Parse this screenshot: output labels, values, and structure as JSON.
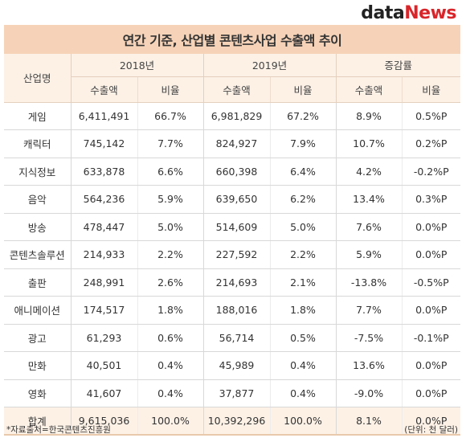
{
  "logo": {
    "part1": "data",
    "part2": "News"
  },
  "title": "연간 기준, 산업별 콘텐츠사업 수출액 추이",
  "header": {
    "industry": "산업명",
    "groups": [
      "2018년",
      "2019년",
      "증감률"
    ],
    "sub": [
      "수출액",
      "비율",
      "수출액",
      "비율",
      "수출액",
      "비율"
    ]
  },
  "rows": [
    {
      "name": "게임",
      "v2018": "6,411,491",
      "r2018": "66.7%",
      "v2019": "6,981,829",
      "r2019": "67.2%",
      "gv": "8.9%",
      "gr": "0.5%P"
    },
    {
      "name": "캐릭터",
      "v2018": "745,142",
      "r2018": "7.7%",
      "v2019": "824,927",
      "r2019": "7.9%",
      "gv": "10.7%",
      "gr": "0.2%P"
    },
    {
      "name": "지식정보",
      "v2018": "633,878",
      "r2018": "6.6%",
      "v2019": "660,398",
      "r2019": "6.4%",
      "gv": "4.2%",
      "gr": "-0.2%P"
    },
    {
      "name": "음악",
      "v2018": "564,236",
      "r2018": "5.9%",
      "v2019": "639,650",
      "r2019": "6.2%",
      "gv": "13.4%",
      "gr": "0.3%P"
    },
    {
      "name": "방송",
      "v2018": "478,447",
      "r2018": "5.0%",
      "v2019": "514,609",
      "r2019": "5.0%",
      "gv": "7.6%",
      "gr": "0.0%P"
    },
    {
      "name": "콘텐츠솔루션",
      "v2018": "214,933",
      "r2018": "2.2%",
      "v2019": "227,592",
      "r2019": "2.2%",
      "gv": "5.9%",
      "gr": "0.0%P"
    },
    {
      "name": "출판",
      "v2018": "248,991",
      "r2018": "2.6%",
      "v2019": "214,693",
      "r2019": "2.1%",
      "gv": "-13.8%",
      "gr": "-0.5%P"
    },
    {
      "name": "애니메이션",
      "v2018": "174,517",
      "r2018": "1.8%",
      "v2019": "188,016",
      "r2019": "1.8%",
      "gv": "7.7%",
      "gr": "0.0%P"
    },
    {
      "name": "광고",
      "v2018": "61,293",
      "r2018": "0.6%",
      "v2019": "56,714",
      "r2019": "0.5%",
      "gv": "-7.5%",
      "gr": "-0.1%P"
    },
    {
      "name": "만화",
      "v2018": "40,501",
      "r2018": "0.4%",
      "v2019": "45,989",
      "r2019": "0.4%",
      "gv": "13.6%",
      "gr": "0.0%P"
    },
    {
      "name": "영화",
      "v2018": "41,607",
      "r2018": "0.4%",
      "v2019": "37,877",
      "r2019": "0.4%",
      "gv": "-9.0%",
      "gr": "0.0%P"
    }
  ],
  "total": {
    "name": "합계",
    "v2018": "9,615,036",
    "r2018": "100.0%",
    "v2019": "10,392,296",
    "r2019": "100.0%",
    "gv": "8.1%",
    "gr": "0.0%P"
  },
  "footnote_source": "*자료출처=한국콘텐츠진흥원",
  "footnote_unit": "(단위: 천 달러)"
}
